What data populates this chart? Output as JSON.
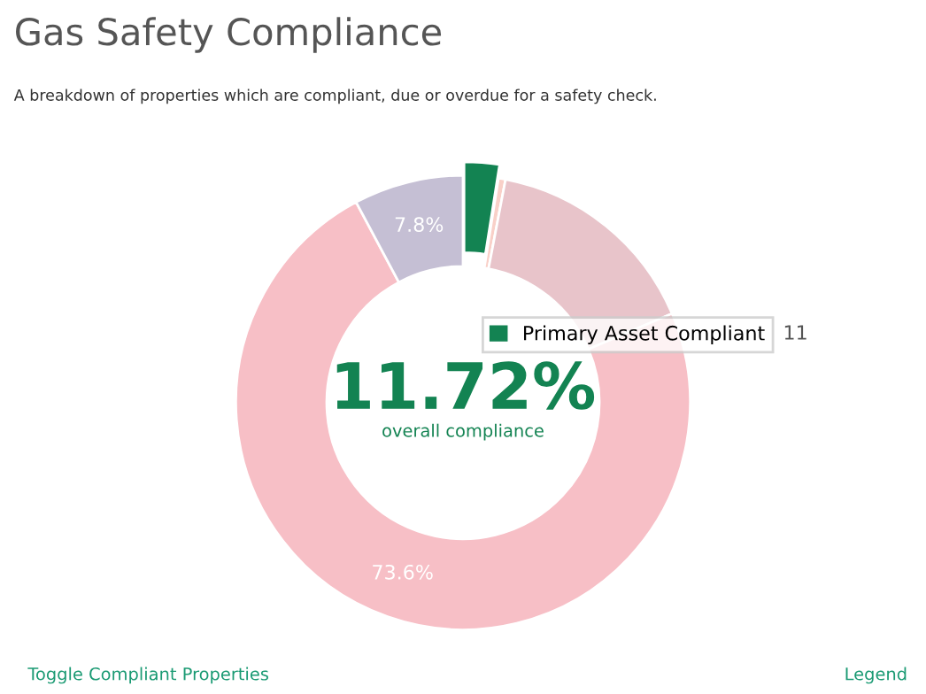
{
  "chart_data": {
    "type": "donut",
    "title": "Gas Safety Compliance",
    "subtitle": "A breakdown of properties which are compliant, due or overdue for a safety check.",
    "categories": [
      "Primary Asset Compliant",
      null,
      null,
      null,
      null
    ],
    "values": [
      2.5,
      0.5,
      15.6,
      73.6,
      7.8
    ],
    "colors": [
      "#138352",
      "#f9d0c8",
      "#e8c4ca",
      "#f7bfc6",
      "#c5bfd4"
    ],
    "value_labels": [
      null,
      null,
      null,
      "73.6%",
      "7.8%"
    ],
    "legend": "top right",
    "annotations": [
      "11",
      "11.72%",
      "overall compliance",
      "Toggle Compliant Properties",
      "Legend"
    ]
  }
}
